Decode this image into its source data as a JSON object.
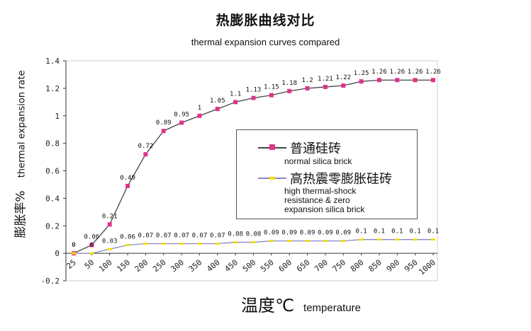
{
  "title": "热膨胀曲线对比",
  "subtitle": "thermal expansion curves compared",
  "ylabel_cn": "膨胀率%",
  "ylabel_en": "thermal expansion rate",
  "xlabel_cn": "温度℃",
  "xlabel_en": "temperature",
  "legend": [
    {
      "name_cn": "普通硅砖",
      "name_en": "normal silica brick"
    },
    {
      "name_cn": "高热震零膨胀硅砖",
      "name_en": "high thermal-shock\nresistance & zero\nexpansion silica brick"
    }
  ],
  "colors": {
    "series1_marker": "#e0338a",
    "series1_line": "#444444",
    "series2_marker": "#f2e000",
    "series2_line": "#8d86c6"
  },
  "chart_data": {
    "type": "line",
    "categories": [
      "25",
      "50",
      "100",
      "150",
      "200",
      "250",
      "300",
      "350",
      "400",
      "450",
      "500",
      "550",
      "600",
      "650",
      "700",
      "750",
      "800",
      "850",
      "900",
      "950",
      "1000"
    ],
    "ylim": [
      -0.2,
      1.4
    ],
    "yticks": [
      "1.4",
      "1.2",
      "1",
      "0.8",
      "0.6",
      "0.4",
      "0.2",
      "0",
      "-0.2"
    ],
    "grid": false,
    "legend_position": "center-right",
    "series": [
      {
        "name": "普通硅砖",
        "values": [
          0,
          0.06,
          0.21,
          0.49,
          0.72,
          0.89,
          0.95,
          1,
          1.05,
          1.1,
          1.13,
          1.15,
          1.18,
          1.2,
          1.21,
          1.22,
          1.25,
          1.26,
          1.26,
          1.26,
          1.26
        ],
        "labels": [
          "0",
          "0.06",
          "0.21",
          "0.49",
          "0.72",
          "0.89",
          "0.95",
          "1",
          "1.05",
          "1.1",
          "1.13",
          "1.15",
          "1.18",
          "1.2",
          "1.21",
          "1.22",
          "1.25",
          "1.26",
          "1.26",
          "1.26",
          "1.26"
        ]
      },
      {
        "name": "高热震零膨胀硅砖",
        "values": [
          0,
          0,
          0.03,
          0.06,
          0.07,
          0.07,
          0.07,
          0.07,
          0.07,
          0.08,
          0.08,
          0.09,
          0.09,
          0.09,
          0.09,
          0.09,
          0.1,
          0.1,
          0.1,
          0.1,
          0.1
        ],
        "labels": [
          "0",
          "0",
          "0.03",
          "0.06",
          "0.07",
          "0.07",
          "0.07",
          "0.07",
          "0.07",
          "0.08",
          "0.08",
          "0.09",
          "0.09",
          "0.09",
          "0.09",
          "0.09",
          "0.1",
          "0.1",
          "0.1",
          "0.1",
          "0.1"
        ]
      }
    ]
  }
}
